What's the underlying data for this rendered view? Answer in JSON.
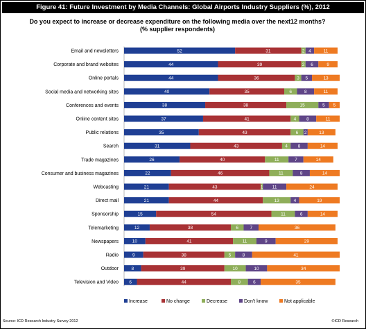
{
  "figure_title": "Figure 41: Future Investment by Media Channels: Global Airports Industry Suppliers (%), 2012",
  "question": "Do you expect to increase or decrease expenditure on the following media over the next12 months? (% supplier respondents)",
  "source": "Source: ICD Research Industry Survey 2012",
  "credit": "©ICD Research",
  "chart_data": {
    "type": "bar",
    "orientation": "horizontal",
    "stacked": true,
    "percent_stacked": true,
    "legend_position": "bottom",
    "grid": false,
    "xlim": [
      0,
      100
    ],
    "categories": [
      "Email and newsletters",
      "Corporate and brand websites",
      "Online portals",
      "Social media and networking sites",
      "Conferences and events",
      "Online content sites",
      "Public relations",
      "Search",
      "Trade magazines",
      "Consumer and business magazines",
      "Webcasting",
      "Direct mail",
      "Sponsorship",
      "Telemarketing",
      "Newspapers",
      "Radio",
      "Outdoor",
      "Television and Video"
    ],
    "series": [
      {
        "name": "Increase",
        "color": "#1f3f94",
        "values": [
          52,
          44,
          44,
          40,
          38,
          37,
          35,
          31,
          26,
          22,
          21,
          21,
          15,
          12,
          10,
          9,
          8,
          6
        ]
      },
      {
        "name": "No change",
        "color": "#a83235",
        "values": [
          31,
          39,
          36,
          35,
          38,
          41,
          43,
          43,
          40,
          46,
          43,
          44,
          54,
          38,
          41,
          38,
          39,
          44
        ]
      },
      {
        "name": "Decrease",
        "color": "#8fae5a",
        "values": [
          2,
          2,
          3,
          6,
          15,
          4,
          6,
          4,
          11,
          11,
          1,
          13,
          11,
          6,
          11,
          5,
          10,
          8
        ]
      },
      {
        "name": "Don't know",
        "color": "#5f4587",
        "values": [
          4,
          6,
          5,
          8,
          5,
          8,
          2,
          8,
          7,
          8,
          11,
          4,
          6,
          7,
          9,
          8,
          10,
          6
        ]
      },
      {
        "name": "Not applicable",
        "color": "#ee7a22",
        "values": [
          11,
          9,
          13,
          11,
          5,
          11,
          13,
          14,
          14,
          14,
          24,
          19,
          14,
          36,
          29,
          41,
          34,
          35
        ]
      }
    ]
  }
}
